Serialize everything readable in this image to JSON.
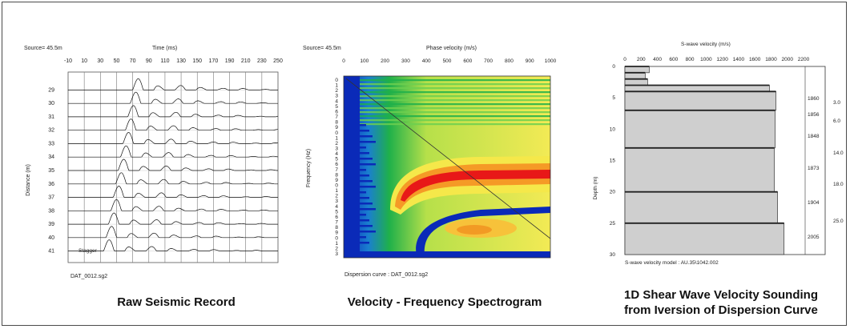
{
  "panels": {
    "seismic": {
      "source_label": "Source= 45.5m",
      "x_title": "Time (ms)",
      "y_title": "Distance (m)",
      "footer": "DAT_0012.sg2",
      "stagger": "Stagger",
      "caption": "Raw Seismic Record"
    },
    "spectrogram": {
      "source_label": "Source= 45.5m",
      "x_title": "Phase velocity (m/s)",
      "y_title": "Frequency (Hz)",
      "footer": "Dispersion curve : DAT_0012.sg2",
      "caption": "Velocity - Frequency Spectrogram"
    },
    "velocity": {
      "x_title": "S-wave velocity (m/s)",
      "y_title": "Depth (m)",
      "footer": "S-wave velocity model  : AU.35\\1042.002",
      "caption_line1": "1D Shear Wave Velocity Sounding",
      "caption_line2": "from Iversion of Dispersion Curve"
    }
  },
  "chart_data": [
    {
      "type": "line",
      "title": "",
      "xlabel": "Time (ms)",
      "ylabel": "Distance (m)",
      "x_ticks": [
        -10,
        10,
        30,
        50,
        70,
        90,
        110,
        130,
        150,
        170,
        190,
        210,
        230,
        250
      ],
      "y_ticks": [
        29,
        30,
        31,
        32,
        33,
        34,
        35,
        36,
        37,
        38,
        39,
        40,
        41
      ],
      "xlim": [
        -10,
        250
      ],
      "traces": [
        {
          "offset": 29,
          "first_break_ms": 70
        },
        {
          "offset": 30,
          "first_break_ms": 67
        },
        {
          "offset": 31,
          "first_break_ms": 64
        },
        {
          "offset": 32,
          "first_break_ms": 61
        },
        {
          "offset": 33,
          "first_break_ms": 58
        },
        {
          "offset": 34,
          "first_break_ms": 55
        },
        {
          "offset": 35,
          "first_break_ms": 52
        },
        {
          "offset": 36,
          "first_break_ms": 49
        },
        {
          "offset": 37,
          "first_break_ms": 46
        },
        {
          "offset": 38,
          "first_break_ms": 43
        },
        {
          "offset": 39,
          "first_break_ms": 40
        },
        {
          "offset": 40,
          "first_break_ms": 37
        },
        {
          "offset": 41,
          "first_break_ms": 34
        }
      ]
    },
    {
      "type": "heatmap",
      "title": "",
      "xlabel": "Phase velocity (m/s)",
      "ylabel": "Frequency (Hz)",
      "x_ticks": [
        0,
        100,
        200,
        300,
        400,
        500,
        600,
        700,
        800,
        900,
        1000
      ],
      "xlim": [
        0,
        1000
      ],
      "colors": {
        "low": "#0a2ab8",
        "mid1": "#1fb04a",
        "mid2": "#f5e84a",
        "high": "#e81818"
      },
      "high_energy_band": {
        "velocity_from": 200,
        "velocity_to": 1000,
        "velocity_plateau": 700
      }
    },
    {
      "type": "bar",
      "title": "",
      "xlabel": "S-wave velocity (m/s)",
      "ylabel": "Depth (m)",
      "x_ticks": [
        0,
        200,
        400,
        600,
        800,
        1000,
        1200,
        1400,
        1600,
        1800,
        2000,
        2200
      ],
      "y_ticks": [
        0,
        5,
        10,
        15,
        20,
        25,
        30
      ],
      "xlim": [
        0,
        2200
      ],
      "ylim": [
        0,
        30
      ],
      "layers": [
        {
          "top": 0,
          "bottom": 1,
          "vs": 300
        },
        {
          "top": 1,
          "bottom": 2,
          "vs": 250
        },
        {
          "top": 2,
          "bottom": 3,
          "vs": 280
        },
        {
          "top": 3,
          "bottom": 4,
          "vs": 1780
        },
        {
          "top": 4,
          "bottom": 7,
          "vs": 1860
        },
        {
          "top": 7,
          "bottom": 13,
          "vs": 1850
        },
        {
          "top": 13,
          "bottom": 20,
          "vs": 1840
        },
        {
          "top": 20,
          "bottom": 25,
          "vs": 1880
        },
        {
          "top": 25,
          "bottom": 30,
          "vs": 1960
        }
      ],
      "right_column_labels": [
        "1860",
        "1856",
        "1848",
        "1873",
        "1904",
        "2005"
      ],
      "depth_labels": [
        "3.0",
        "6.0",
        "14.0",
        "18.0",
        "25.0"
      ]
    }
  ]
}
